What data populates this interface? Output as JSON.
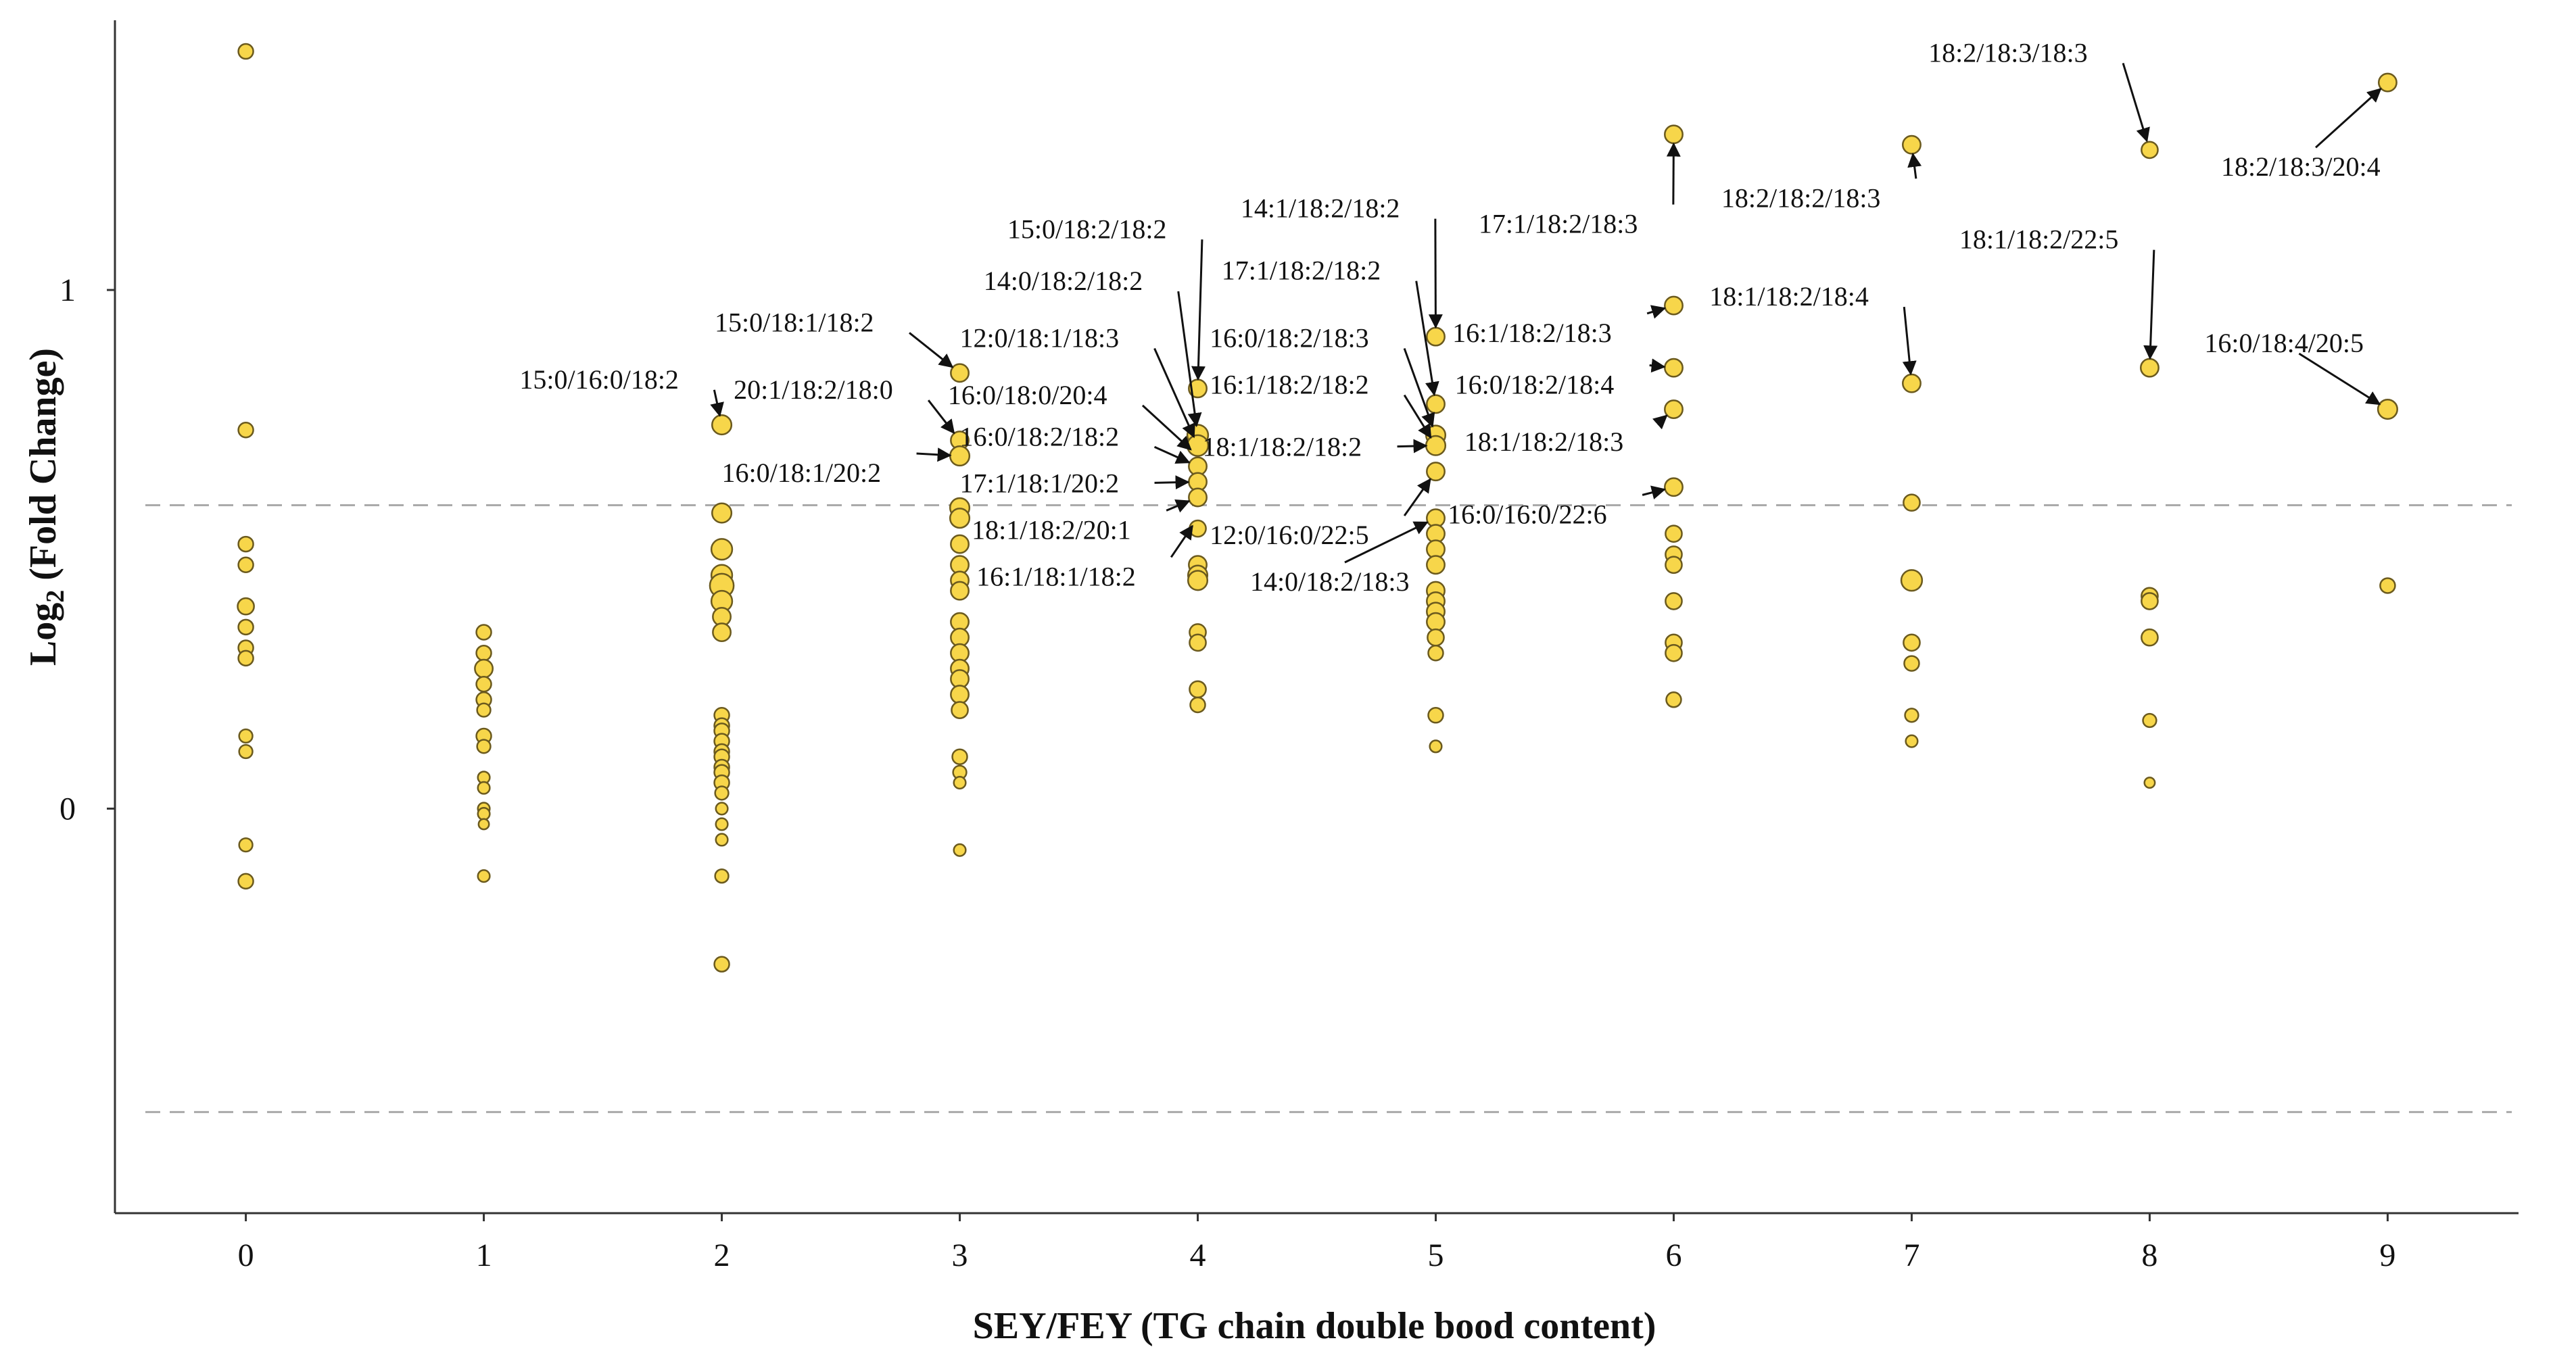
{
  "chart_data": {
    "type": "scatter",
    "title": "",
    "xlabel": "SEY/FEY (TG chain double bood content)",
    "ylabel_main": "Log",
    "ylabel_sub": "2",
    "ylabel_rest": " (Fold Change)",
    "xlim": [
      -0.55,
      9.55
    ],
    "ylim": [
      -0.78,
      1.52
    ],
    "x_ticks": [
      0,
      1,
      2,
      3,
      4,
      5,
      6,
      7,
      8,
      9
    ],
    "y_ticks": [
      0,
      1
    ],
    "thresholds": [
      0.585,
      -0.585
    ],
    "colors": {
      "point_fill": "#f7d64a",
      "point_stroke": "#6b5a1e",
      "threshold": "#aaaaaa",
      "axis": "#333333",
      "arrow": "#111111"
    },
    "points": [
      {
        "x": 0,
        "y": 1.46,
        "s": 1
      },
      {
        "x": 0,
        "y": 0.73,
        "s": 1
      },
      {
        "x": 0,
        "y": 0.51,
        "s": 1
      },
      {
        "x": 0,
        "y": 0.47,
        "s": 1
      },
      {
        "x": 0,
        "y": 0.39,
        "s": 1.1
      },
      {
        "x": 0,
        "y": 0.35,
        "s": 1
      },
      {
        "x": 0,
        "y": 0.31,
        "s": 1
      },
      {
        "x": 0,
        "y": 0.29,
        "s": 1
      },
      {
        "x": 0,
        "y": 0.14,
        "s": 0.9
      },
      {
        "x": 0,
        "y": 0.11,
        "s": 0.9
      },
      {
        "x": 0,
        "y": -0.07,
        "s": 0.9
      },
      {
        "x": 0,
        "y": -0.14,
        "s": 1
      },
      {
        "x": 1,
        "y": 0.34,
        "s": 1
      },
      {
        "x": 1,
        "y": 0.3,
        "s": 1
      },
      {
        "x": 1,
        "y": 0.27,
        "s": 1.2
      },
      {
        "x": 1,
        "y": 0.24,
        "s": 1
      },
      {
        "x": 1,
        "y": 0.21,
        "s": 1
      },
      {
        "x": 1,
        "y": 0.19,
        "s": 0.9
      },
      {
        "x": 1,
        "y": 0.14,
        "s": 1
      },
      {
        "x": 1,
        "y": 0.12,
        "s": 0.9
      },
      {
        "x": 1,
        "y": 0.06,
        "s": 0.8
      },
      {
        "x": 1,
        "y": 0.04,
        "s": 0.8
      },
      {
        "x": 1,
        "y": 0.0,
        "s": 0.8
      },
      {
        "x": 1,
        "y": -0.01,
        "s": 0.8
      },
      {
        "x": 1,
        "y": -0.03,
        "s": 0.7
      },
      {
        "x": 1,
        "y": -0.13,
        "s": 0.8
      },
      {
        "x": 2,
        "y": 0.74,
        "s": 1.3
      },
      {
        "x": 2,
        "y": 0.57,
        "s": 1.3
      },
      {
        "x": 2,
        "y": 0.5,
        "s": 1.4
      },
      {
        "x": 2,
        "y": 0.45,
        "s": 1.4
      },
      {
        "x": 2,
        "y": 0.43,
        "s": 1.6
      },
      {
        "x": 2,
        "y": 0.4,
        "s": 1.4
      },
      {
        "x": 2,
        "y": 0.37,
        "s": 1.2
      },
      {
        "x": 2,
        "y": 0.34,
        "s": 1.2
      },
      {
        "x": 2,
        "y": 0.18,
        "s": 1
      },
      {
        "x": 2,
        "y": 0.16,
        "s": 1
      },
      {
        "x": 2,
        "y": 0.15,
        "s": 1
      },
      {
        "x": 2,
        "y": 0.13,
        "s": 1
      },
      {
        "x": 2,
        "y": 0.11,
        "s": 1
      },
      {
        "x": 2,
        "y": 0.1,
        "s": 1
      },
      {
        "x": 2,
        "y": 0.08,
        "s": 1
      },
      {
        "x": 2,
        "y": 0.07,
        "s": 1
      },
      {
        "x": 2,
        "y": 0.05,
        "s": 1
      },
      {
        "x": 2,
        "y": 0.03,
        "s": 0.9
      },
      {
        "x": 2,
        "y": 0.0,
        "s": 0.8
      },
      {
        "x": 2,
        "y": -0.03,
        "s": 0.8
      },
      {
        "x": 2,
        "y": -0.06,
        "s": 0.8
      },
      {
        "x": 2,
        "y": -0.13,
        "s": 0.9
      },
      {
        "x": 2,
        "y": -0.3,
        "s": 1
      },
      {
        "x": 3,
        "y": 0.84,
        "s": 1.2
      },
      {
        "x": 3,
        "y": 0.71,
        "s": 1.2
      },
      {
        "x": 3,
        "y": 0.68,
        "s": 1.3
      },
      {
        "x": 3,
        "y": 0.58,
        "s": 1.3
      },
      {
        "x": 3,
        "y": 0.56,
        "s": 1.3
      },
      {
        "x": 3,
        "y": 0.51,
        "s": 1.2
      },
      {
        "x": 3,
        "y": 0.47,
        "s": 1.2
      },
      {
        "x": 3,
        "y": 0.44,
        "s": 1.2
      },
      {
        "x": 3,
        "y": 0.42,
        "s": 1.2
      },
      {
        "x": 3,
        "y": 0.36,
        "s": 1.2
      },
      {
        "x": 3,
        "y": 0.33,
        "s": 1.2
      },
      {
        "x": 3,
        "y": 0.3,
        "s": 1.2
      },
      {
        "x": 3,
        "y": 0.27,
        "s": 1.2
      },
      {
        "x": 3,
        "y": 0.25,
        "s": 1.2
      },
      {
        "x": 3,
        "y": 0.22,
        "s": 1.2
      },
      {
        "x": 3,
        "y": 0.19,
        "s": 1.1
      },
      {
        "x": 3,
        "y": 0.1,
        "s": 1
      },
      {
        "x": 3,
        "y": 0.07,
        "s": 0.9
      },
      {
        "x": 3,
        "y": 0.05,
        "s": 0.8
      },
      {
        "x": 3,
        "y": -0.08,
        "s": 0.8
      },
      {
        "x": 4,
        "y": 0.81,
        "s": 1.2
      },
      {
        "x": 4,
        "y": 0.72,
        "s": 1.4
      },
      {
        "x": 4,
        "y": 0.7,
        "s": 1.4
      },
      {
        "x": 4,
        "y": 0.66,
        "s": 1.2
      },
      {
        "x": 4,
        "y": 0.63,
        "s": 1.2
      },
      {
        "x": 4,
        "y": 0.6,
        "s": 1.2
      },
      {
        "x": 4,
        "y": 0.54,
        "s": 1.1
      },
      {
        "x": 4,
        "y": 0.47,
        "s": 1.2
      },
      {
        "x": 4,
        "y": 0.45,
        "s": 1.3
      },
      {
        "x": 4,
        "y": 0.44,
        "s": 1.3
      },
      {
        "x": 4,
        "y": 0.34,
        "s": 1.1
      },
      {
        "x": 4,
        "y": 0.32,
        "s": 1.1
      },
      {
        "x": 4,
        "y": 0.23,
        "s": 1.1
      },
      {
        "x": 4,
        "y": 0.2,
        "s": 1
      },
      {
        "x": 5,
        "y": 0.91,
        "s": 1.2
      },
      {
        "x": 5,
        "y": 0.78,
        "s": 1.2
      },
      {
        "x": 5,
        "y": 0.72,
        "s": 1.3
      },
      {
        "x": 5,
        "y": 0.7,
        "s": 1.3
      },
      {
        "x": 5,
        "y": 0.65,
        "s": 1.2
      },
      {
        "x": 5,
        "y": 0.56,
        "s": 1.2
      },
      {
        "x": 5,
        "y": 0.53,
        "s": 1.2
      },
      {
        "x": 5,
        "y": 0.5,
        "s": 1.2
      },
      {
        "x": 5,
        "y": 0.47,
        "s": 1.2
      },
      {
        "x": 5,
        "y": 0.42,
        "s": 1.2
      },
      {
        "x": 5,
        "y": 0.4,
        "s": 1.2
      },
      {
        "x": 5,
        "y": 0.38,
        "s": 1.2
      },
      {
        "x": 5,
        "y": 0.36,
        "s": 1.2
      },
      {
        "x": 5,
        "y": 0.33,
        "s": 1.1
      },
      {
        "x": 5,
        "y": 0.3,
        "s": 1
      },
      {
        "x": 5,
        "y": 0.18,
        "s": 1
      },
      {
        "x": 5,
        "y": 0.12,
        "s": 0.8
      },
      {
        "x": 6,
        "y": 1.3,
        "s": 1.2
      },
      {
        "x": 6,
        "y": 0.97,
        "s": 1.2
      },
      {
        "x": 6,
        "y": 0.85,
        "s": 1.2
      },
      {
        "x": 6,
        "y": 0.77,
        "s": 1.2
      },
      {
        "x": 6,
        "y": 0.62,
        "s": 1.2
      },
      {
        "x": 6,
        "y": 0.53,
        "s": 1.1
      },
      {
        "x": 6,
        "y": 0.49,
        "s": 1.1
      },
      {
        "x": 6,
        "y": 0.47,
        "s": 1.1
      },
      {
        "x": 6,
        "y": 0.4,
        "s": 1.1
      },
      {
        "x": 6,
        "y": 0.32,
        "s": 1.1
      },
      {
        "x": 6,
        "y": 0.3,
        "s": 1.1
      },
      {
        "x": 6,
        "y": 0.21,
        "s": 1
      },
      {
        "x": 7,
        "y": 1.28,
        "s": 1.2
      },
      {
        "x": 7,
        "y": 0.82,
        "s": 1.2
      },
      {
        "x": 7,
        "y": 0.59,
        "s": 1.1
      },
      {
        "x": 7,
        "y": 0.44,
        "s": 1.4
      },
      {
        "x": 7,
        "y": 0.32,
        "s": 1.1
      },
      {
        "x": 7,
        "y": 0.28,
        "s": 1
      },
      {
        "x": 7,
        "y": 0.18,
        "s": 0.9
      },
      {
        "x": 7,
        "y": 0.13,
        "s": 0.8
      },
      {
        "x": 8,
        "y": 1.27,
        "s": 1.1
      },
      {
        "x": 8,
        "y": 0.85,
        "s": 1.2
      },
      {
        "x": 8,
        "y": 0.41,
        "s": 1.1
      },
      {
        "x": 8,
        "y": 0.4,
        "s": 1.1
      },
      {
        "x": 8,
        "y": 0.33,
        "s": 1.1
      },
      {
        "x": 8,
        "y": 0.17,
        "s": 0.9
      },
      {
        "x": 8,
        "y": 0.05,
        "s": 0.7
      },
      {
        "x": 9,
        "y": 1.4,
        "s": 1.2
      },
      {
        "x": 9,
        "y": 0.77,
        "s": 1.3
      },
      {
        "x": 9,
        "y": 0.43,
        "s": 1
      }
    ],
    "annotations": [
      {
        "label": "15:0/16:0/18:2",
        "tx": 1.15,
        "ty": 0.81,
        "px": 2,
        "py": 0.74,
        "anchor": "start"
      },
      {
        "label": "15:0/18:1/18:2",
        "tx": 1.97,
        "ty": 0.92,
        "px": 3,
        "py": 0.84,
        "anchor": "start"
      },
      {
        "label": "20:1/18:2/18:0",
        "tx": 2.05,
        "ty": 0.79,
        "px": 3,
        "py": 0.71,
        "anchor": "start"
      },
      {
        "label": "16:0/18:1/20:2",
        "tx": 2.0,
        "ty": 0.63,
        "px": 3,
        "py": 0.68,
        "anchor": "start"
      },
      {
        "label": "15:0/18:2/18:2",
        "tx": 3.2,
        "ty": 1.1,
        "px": 4,
        "py": 0.81,
        "anchor": "start"
      },
      {
        "label": "14:0/18:2/18:2",
        "tx": 3.1,
        "ty": 1.0,
        "px": 4,
        "py": 0.72,
        "anchor": "start"
      },
      {
        "label": "12:0/18:1/18:3",
        "tx": 3.0,
        "ty": 0.89,
        "px": 4,
        "py": 0.7,
        "anchor": "start"
      },
      {
        "label": "16:0/18:0/20:4",
        "tx": 2.95,
        "ty": 0.78,
        "px": 4,
        "py": 0.68,
        "anchor": "start"
      },
      {
        "label": "16:0/18:2/18:2",
        "tx": 3.0,
        "ty": 0.7,
        "px": 4,
        "py": 0.66,
        "anchor": "start"
      },
      {
        "label": "17:1/18:1/20:2",
        "tx": 3.0,
        "ty": 0.61,
        "px": 4,
        "py": 0.63,
        "anchor": "start"
      },
      {
        "label": "18:1/18:2/20:1",
        "tx": 3.05,
        "ty": 0.52,
        "px": 4,
        "py": 0.6,
        "anchor": "start"
      },
      {
        "label": "16:1/18:1/18:2",
        "tx": 3.07,
        "ty": 0.43,
        "px": 4,
        "py": 0.56,
        "anchor": "start"
      },
      {
        "label": "14:1/18:2/18:2",
        "tx": 4.18,
        "ty": 1.14,
        "px": 5,
        "py": 0.91,
        "anchor": "start"
      },
      {
        "label": "17:1/18:2/18:2",
        "tx": 4.1,
        "ty": 1.02,
        "px": 5,
        "py": 0.78,
        "anchor": "start"
      },
      {
        "label": "16:0/18:2/18:3",
        "tx": 4.05,
        "ty": 0.89,
        "px": 5,
        "py": 0.72,
        "anchor": "start"
      },
      {
        "label": "16:1/18:2/18:2",
        "tx": 4.05,
        "ty": 0.8,
        "px": 5,
        "py": 0.7,
        "anchor": "start"
      },
      {
        "label": "18:1/18:2/18:2",
        "tx": 4.02,
        "ty": 0.68,
        "px": 5,
        "py": 0.7,
        "anchor": "start"
      },
      {
        "label": "12:0/16:0/22:5",
        "tx": 4.05,
        "ty": 0.51,
        "px": 5,
        "py": 0.65,
        "anchor": "start"
      },
      {
        "label": "14:0/18:2/18:3",
        "tx": 4.22,
        "ty": 0.42,
        "px": 5,
        "py": 0.56,
        "anchor": "start"
      },
      {
        "label": "17:1/18:2/18:3",
        "tx": 5.18,
        "ty": 1.11,
        "px": 6,
        "py": 1.3,
        "anchor": "start"
      },
      {
        "label": "16:1/18:2/18:3",
        "tx": 5.07,
        "ty": 0.9,
        "px": 6,
        "py": 0.97,
        "anchor": "start"
      },
      {
        "label": "16:0/18:2/18:4",
        "tx": 5.08,
        "ty": 0.8,
        "px": 6,
        "py": 0.85,
        "anchor": "start"
      },
      {
        "label": "18:1/18:2/18:3",
        "tx": 5.12,
        "ty": 0.69,
        "px": 6,
        "py": 0.77,
        "anchor": "start"
      },
      {
        "label": "16:0/16:0/22:6",
        "tx": 5.05,
        "ty": 0.55,
        "px": 6,
        "py": 0.62,
        "anchor": "start"
      },
      {
        "label": "18:2/18:2/18:3",
        "tx": 6.2,
        "ty": 1.16,
        "px": 7,
        "py": 1.28,
        "anchor": "start"
      },
      {
        "label": "18:1/18:2/18:4",
        "tx": 6.15,
        "ty": 0.97,
        "px": 7,
        "py": 0.82,
        "anchor": "start"
      },
      {
        "label": "18:2/18:3/18:3",
        "tx": 7.07,
        "ty": 1.44,
        "px": 8,
        "py": 1.27,
        "anchor": "start"
      },
      {
        "label": "18:1/18:2/22:5",
        "tx": 7.2,
        "ty": 1.08,
        "px": 8,
        "py": 0.85,
        "anchor": "start"
      },
      {
        "label": "18:2/18:3/20:4",
        "tx": 8.3,
        "ty": 1.22,
        "px": 9,
        "py": 1.4,
        "anchor": "start"
      },
      {
        "label": "16:0/18:4/20:5",
        "tx": 8.23,
        "ty": 0.88,
        "px": 9,
        "py": 0.77,
        "anchor": "start"
      }
    ]
  }
}
